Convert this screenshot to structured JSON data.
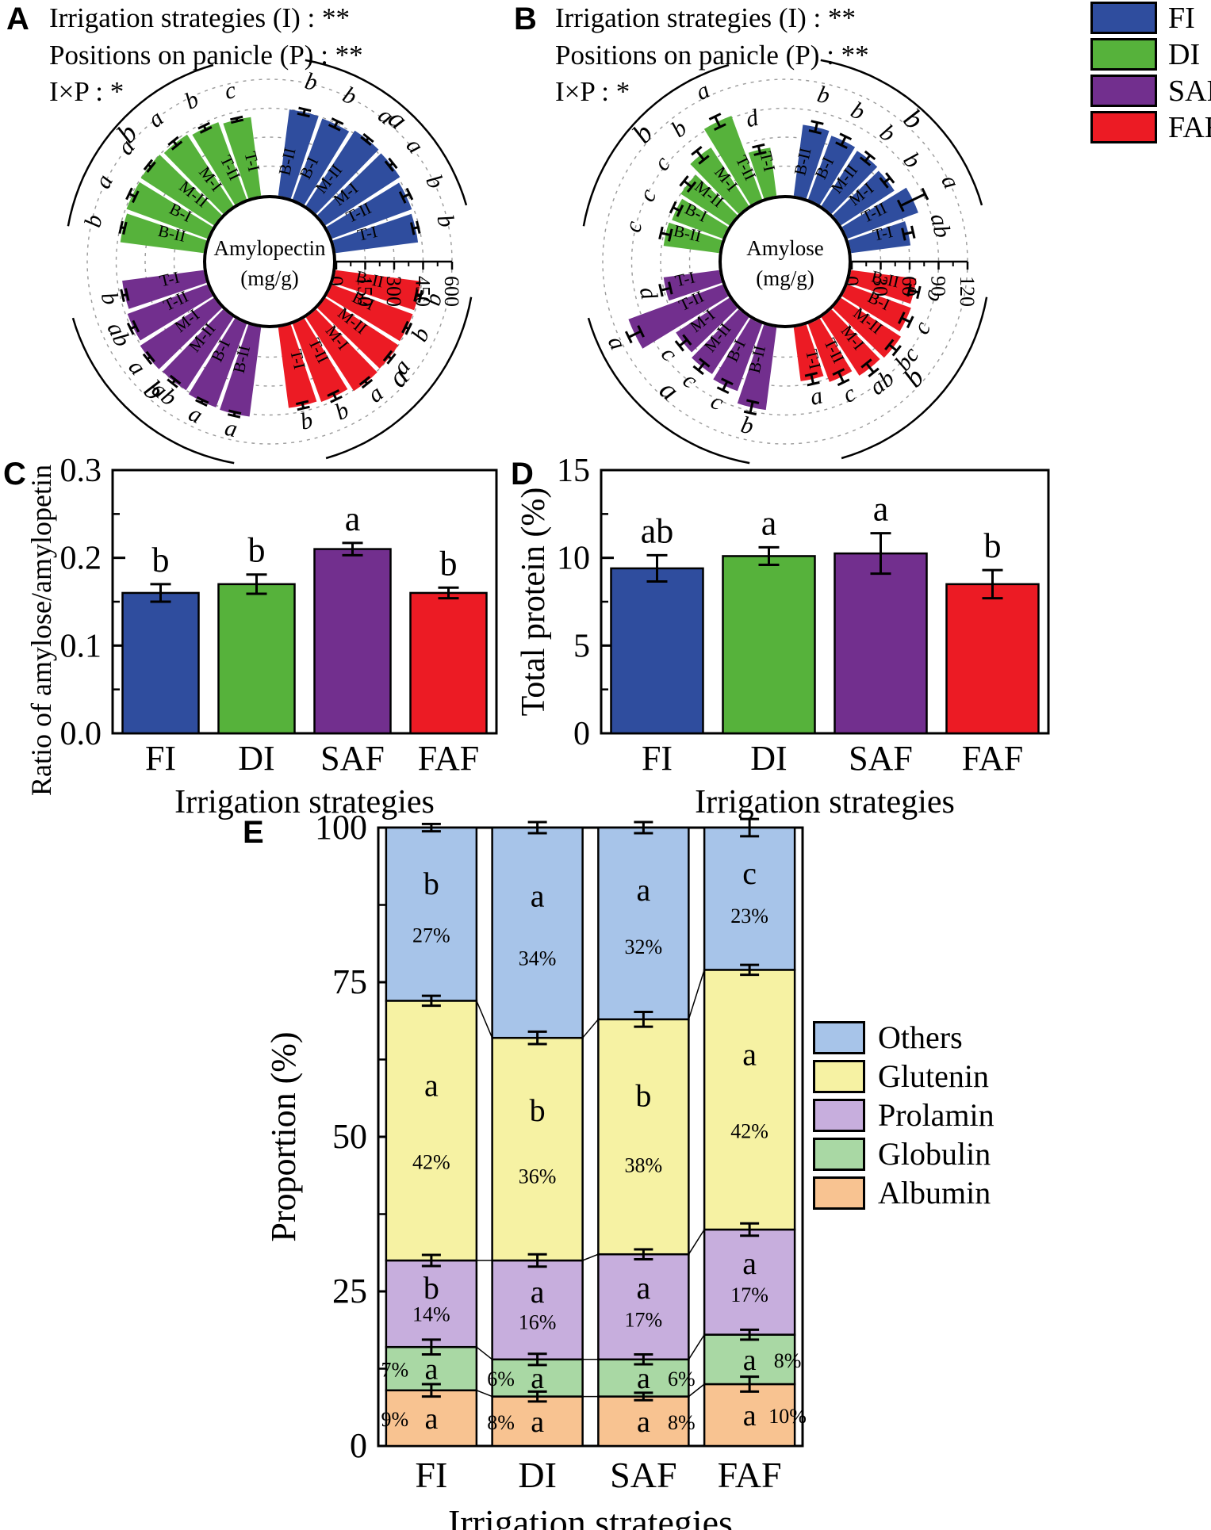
{
  "legend_main": {
    "items": [
      {
        "label": "FI",
        "color": "#2f4d9e"
      },
      {
        "label": "DI",
        "color": "#56b23b"
      },
      {
        "label": "SAF",
        "color": "#722f8e"
      },
      {
        "label": "FAF",
        "color": "#ec1b24"
      }
    ]
  },
  "chart_data": [
    {
      "id": "A",
      "panel_label": "A",
      "type": "polar_bar",
      "title": "Amylopectin (mg/g)",
      "stats_lines": [
        "Irrigation strategies (I) : **",
        "Positions on panicle (P) : **",
        "I×P : *"
      ],
      "center_label_lines": [
        "Amylopectin",
        "(mg/g)"
      ],
      "axis": {
        "min": 0,
        "max": 600,
        "major_ticks": [
          0,
          150,
          300,
          450,
          600
        ]
      },
      "position_order": [
        "T-I",
        "T-II",
        "M-I",
        "M-II",
        "B-I",
        "B-II"
      ],
      "groups": [
        {
          "name": "FI",
          "color": "#2f4d9e",
          "quadrant": "NE",
          "group_letter": "a",
          "bars": [
            {
              "pos": "T-I",
              "value": 430,
              "err": 15,
              "letter": "b"
            },
            {
              "pos": "T-II",
              "value": 440,
              "err": 20,
              "letter": "b"
            },
            {
              "pos": "M-I",
              "value": 460,
              "err": 12,
              "letter": "a"
            },
            {
              "pos": "M-II",
              "value": 465,
              "err": 10,
              "letter": "a"
            },
            {
              "pos": "B-I",
              "value": 445,
              "err": 18,
              "letter": "b"
            },
            {
              "pos": "B-II",
              "value": 450,
              "err": 15,
              "letter": "b"
            }
          ]
        },
        {
          "name": "DI",
          "color": "#56b23b",
          "quadrant": "NW",
          "group_letter": "b",
          "bars": [
            {
              "pos": "T-I",
              "value": 410,
              "err": 8,
              "letter": "c"
            },
            {
              "pos": "T-II",
              "value": 425,
              "err": 12,
              "letter": "b"
            },
            {
              "pos": "M-I",
              "value": 440,
              "err": 15,
              "letter": "a"
            },
            {
              "pos": "M-II",
              "value": 450,
              "err": 10,
              "letter": "a"
            },
            {
              "pos": "B-I",
              "value": 445,
              "err": 18,
              "letter": "a"
            },
            {
              "pos": "B-II",
              "value": 435,
              "err": 10,
              "letter": "b"
            }
          ]
        },
        {
          "name": "SAF",
          "color": "#722f8e",
          "quadrant": "SW",
          "group_letter": "b",
          "bars": [
            {
              "pos": "T-I",
              "value": 425,
              "err": 12,
              "letter": "b"
            },
            {
              "pos": "T-II",
              "value": 440,
              "err": 15,
              "letter": "ab"
            },
            {
              "pos": "M-I",
              "value": 455,
              "err": 10,
              "letter": "a"
            },
            {
              "pos": "M-II",
              "value": 450,
              "err": 12,
              "letter": "ab"
            },
            {
              "pos": "B-I",
              "value": 460,
              "err": 8,
              "letter": "a"
            },
            {
              "pos": "B-II",
              "value": 465,
              "err": 10,
              "letter": "a"
            }
          ]
        },
        {
          "name": "FAF",
          "color": "#ec1b24",
          "quadrant": "SE",
          "group_letter": "a",
          "bars": [
            {
              "pos": "T-I",
              "value": 420,
              "err": 15,
              "letter": "b"
            },
            {
              "pos": "T-II",
              "value": 430,
              "err": 18,
              "letter": "b"
            },
            {
              "pos": "M-I",
              "value": 455,
              "err": 10,
              "letter": "a"
            },
            {
              "pos": "M-II",
              "value": 450,
              "err": 12,
              "letter": "a"
            },
            {
              "pos": "B-I",
              "value": 445,
              "err": 10,
              "letter": "b"
            },
            {
              "pos": "B-II",
              "value": 445,
              "err": 12,
              "letter": "b"
            }
          ]
        }
      ]
    },
    {
      "id": "B",
      "panel_label": "B",
      "type": "polar_bar",
      "title": "Amylose (mg/g)",
      "stats_lines": [
        "Irrigation strategies (I) : **",
        "Positions on panicle (P) : **",
        "I×P : *"
      ],
      "center_label_lines": [
        "Amylose",
        "(mg/g)"
      ],
      "axis": {
        "min": 0,
        "max": 120,
        "major_ticks": [
          0,
          30,
          60,
          90,
          120
        ]
      },
      "position_order": [
        "T-I",
        "T-II",
        "M-I",
        "M-II",
        "B-I",
        "B-II"
      ],
      "groups": [
        {
          "name": "FI",
          "color": "#2f4d9e",
          "quadrant": "NE",
          "group_letter": "b",
          "bars": [
            {
              "pos": "T-I",
              "value": 62,
              "err": 5,
              "letter": "ab"
            },
            {
              "pos": "T-II",
              "value": 78,
              "err": 14,
              "letter": "a"
            },
            {
              "pos": "M-I",
              "value": 66,
              "err": 4,
              "letter": "b"
            },
            {
              "pos": "M-II",
              "value": 68,
              "err": 4,
              "letter": "b"
            },
            {
              "pos": "B-I",
              "value": 70,
              "err": 5,
              "letter": "b"
            },
            {
              "pos": "B-II",
              "value": 74,
              "err": 5,
              "letter": "b"
            }
          ]
        },
        {
          "name": "DI",
          "color": "#56b23b",
          "quadrant": "NW",
          "group_letter": "b",
          "bars": [
            {
              "pos": "T-I",
              "value": 50,
              "err": 4,
              "letter": "d"
            },
            {
              "pos": "T-II",
              "value": 92,
              "err": 6,
              "letter": "a"
            },
            {
              "pos": "M-I",
              "value": 72,
              "err": 6,
              "letter": "b"
            },
            {
              "pos": "M-II",
              "value": 60,
              "err": 5,
              "letter": "c"
            },
            {
              "pos": "B-I",
              "value": 56,
              "err": 4,
              "letter": "c"
            },
            {
              "pos": "B-II",
              "value": 58,
              "err": 5,
              "letter": "c"
            }
          ]
        },
        {
          "name": "SAF",
          "color": "#722f8e",
          "quadrant": "SW",
          "group_letter": "a",
          "bars": [
            {
              "pos": "T-I",
              "value": 58,
              "err": 5,
              "letter": "d"
            },
            {
              "pos": "T-II",
              "value": 104,
              "err": 7,
              "letter": "a"
            },
            {
              "pos": "M-I",
              "value": 66,
              "err": 5,
              "letter": "c"
            },
            {
              "pos": "M-II",
              "value": 70,
              "err": 5,
              "letter": "c"
            },
            {
              "pos": "B-I",
              "value": 74,
              "err": 5,
              "letter": "c"
            },
            {
              "pos": "B-II",
              "value": 86,
              "err": 6,
              "letter": "b"
            }
          ]
        },
        {
          "name": "FAF",
          "color": "#ec1b24",
          "quadrant": "SE",
          "group_letter": "b",
          "bars": [
            {
              "pos": "T-I",
              "value": 56,
              "err": 5,
              "letter": "a"
            },
            {
              "pos": "T-II",
              "value": 64,
              "err": 6,
              "letter": "c"
            },
            {
              "pos": "M-I",
              "value": 72,
              "err": 6,
              "letter": "ab"
            },
            {
              "pos": "M-II",
              "value": 74,
              "err": 5,
              "letter": "bc"
            },
            {
              "pos": "B-I",
              "value": 70,
              "err": 5,
              "letter": "c"
            },
            {
              "pos": "B-II",
              "value": 68,
              "err": 5,
              "letter": "c"
            }
          ]
        }
      ]
    },
    {
      "id": "C",
      "panel_label": "C",
      "type": "bar",
      "ylabel": "Ratio of amylose/amylopetin",
      "xlabel": "Irrigation strategies",
      "ymax": 0.3,
      "major_ticks": [
        0,
        0.1,
        0.2,
        0.3
      ],
      "tick_labels": [
        "0.0",
        "0.1",
        "0.2",
        "0.3"
      ],
      "categories": [
        "FI",
        "DI",
        "SAF",
        "FAF"
      ],
      "values": [
        0.16,
        0.17,
        0.21,
        0.16
      ],
      "errors": [
        0.01,
        0.011,
        0.007,
        0.006
      ],
      "letters": [
        "b",
        "b",
        "a",
        "b"
      ],
      "colors": [
        "#2f4d9e",
        "#56b23b",
        "#722f8e",
        "#ec1b24"
      ]
    },
    {
      "id": "D",
      "panel_label": "D",
      "type": "bar",
      "ylabel": "Total protein (%)",
      "xlabel": "Irrigation strategies",
      "ymax": 15,
      "major_ticks": [
        0,
        5,
        10,
        15
      ],
      "tick_labels": [
        "0",
        "5",
        "10",
        "15"
      ],
      "categories": [
        "FI",
        "DI",
        "SAF",
        "FAF"
      ],
      "values": [
        9.4,
        10.1,
        10.25,
        8.5
      ],
      "errors": [
        0.75,
        0.5,
        1.15,
        0.8
      ],
      "letters": [
        "ab",
        "a",
        "a",
        "b"
      ],
      "colors": [
        "#2f4d9e",
        "#56b23b",
        "#722f8e",
        "#ec1b24"
      ]
    },
    {
      "id": "E",
      "panel_label": "E",
      "type": "stacked_bar",
      "ylabel": "Proportion (%)",
      "xlabel": "Irrigation strategies",
      "ymax": 100,
      "major_ticks": [
        0,
        25,
        50,
        75,
        100
      ],
      "tick_labels": [
        "0",
        "25",
        "50",
        "75",
        "100"
      ],
      "categories": [
        "FI",
        "DI",
        "SAF",
        "FAF"
      ],
      "series": [
        {
          "name": "Albumin",
          "color": "#f8c391",
          "values": [
            9,
            8,
            8,
            10
          ],
          "letters": [
            "a",
            "a",
            "a",
            "a"
          ],
          "pct_labels": [
            "9%",
            "8%",
            "8%",
            "10%"
          ],
          "pct_side": [
            "left",
            "left",
            "right",
            "right"
          ]
        },
        {
          "name": "Globulin",
          "color": "#a9d8a4",
          "values": [
            7,
            6,
            6,
            8
          ],
          "letters": [
            "a",
            "a",
            "a",
            "a"
          ],
          "pct_labels": [
            "7%",
            "6%",
            "6%",
            "8%"
          ],
          "pct_side": [
            "left",
            "left",
            "right",
            "right"
          ]
        },
        {
          "name": "Prolamin",
          "color": "#c7aedd",
          "values": [
            14,
            16,
            17,
            17
          ],
          "letters": [
            "b",
            "a",
            "a",
            "a"
          ],
          "pct_labels": [
            "14%",
            "16%",
            "17%",
            "17%"
          ],
          "pct_side": [
            "below",
            "below",
            "below",
            "below"
          ]
        },
        {
          "name": "Glutenin",
          "color": "#f6f2a3",
          "values": [
            42,
            36,
            38,
            42
          ],
          "letters": [
            "a",
            "b",
            "b",
            "a"
          ],
          "pct_labels": [
            "42%",
            "36%",
            "38%",
            "42%"
          ],
          "pct_side": [
            "below",
            "below",
            "below",
            "below"
          ]
        },
        {
          "name": "Others",
          "color": "#a7c4e9",
          "values": [
            27,
            34,
            32,
            23
          ],
          "letters": [
            "b",
            "a",
            "a",
            "c"
          ],
          "pct_labels": [
            "27%",
            "34%",
            "32%",
            "23%"
          ],
          "pct_side": [
            "below",
            "below",
            "below",
            "below"
          ]
        }
      ],
      "boundaries": {
        "FI": [
          9,
          16,
          30,
          72,
          100
        ],
        "DI": [
          8,
          14,
          30,
          66,
          100
        ],
        "SAF": [
          8,
          14,
          31,
          69,
          100
        ],
        "FAF": [
          10,
          18,
          35,
          77,
          100
        ]
      },
      "boundary_errors": {
        "FI": [
          1.0,
          1.2,
          0.9,
          0.8,
          0.6
        ],
        "DI": [
          0.8,
          0.9,
          1.0,
          1.0,
          0.9
        ],
        "SAF": [
          0.6,
          0.8,
          0.8,
          1.2,
          0.9
        ],
        "FAF": [
          1.2,
          0.8,
          1.0,
          0.8,
          1.4
        ]
      },
      "legend": {
        "items": [
          {
            "label": "Others",
            "color": "#a7c4e9"
          },
          {
            "label": "Glutenin",
            "color": "#f6f2a3"
          },
          {
            "label": "Prolamin",
            "color": "#c7aedd"
          },
          {
            "label": "Globulin",
            "color": "#a9d8a4"
          },
          {
            "label": "Albumin",
            "color": "#f8c391"
          }
        ]
      }
    }
  ]
}
